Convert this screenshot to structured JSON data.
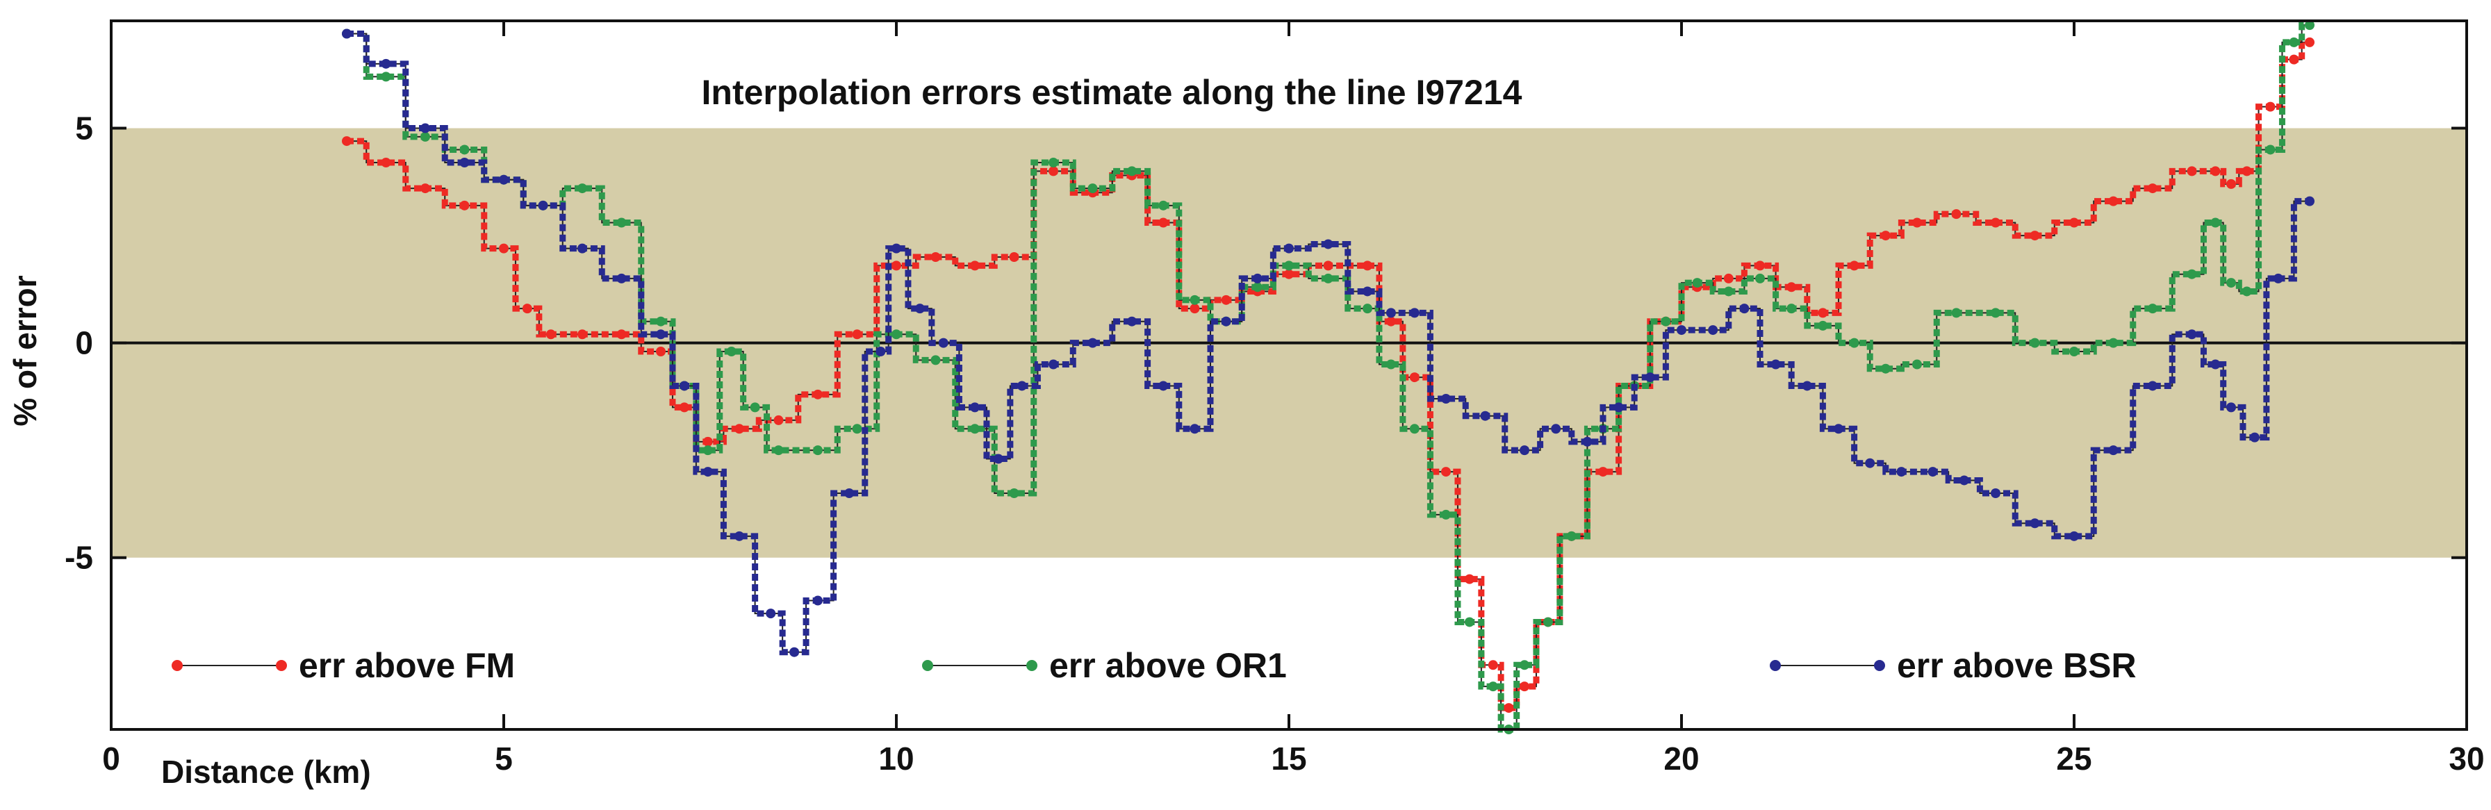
{
  "chart_data": {
    "type": "line",
    "title": "Interpolation errors estimate along the line I97214",
    "xlabel": "Distance (km)",
    "ylabel": "% of error",
    "xlim": [
      0,
      30
    ],
    "ylim": [
      -9,
      7.5
    ],
    "x_ticks": [
      0,
      5,
      10,
      15,
      20,
      25,
      30
    ],
    "y_ticks": [
      -5,
      0,
      5
    ],
    "tolerance_band": {
      "from": -5,
      "to": 5,
      "color": "#d5cda8"
    },
    "zero_line": true,
    "legend_position": "bottom",
    "series": [
      {
        "name": "err above FM",
        "color": "#ee2a24",
        "x": [
          3.0,
          3.5,
          4.0,
          4.5,
          5.0,
          5.3,
          5.6,
          6.0,
          6.5,
          7.0,
          7.3,
          7.6,
          8.0,
          8.5,
          9.0,
          9.5,
          10.0,
          10.5,
          11.0,
          11.5,
          12.0,
          12.5,
          13.0,
          13.4,
          13.8,
          14.2,
          14.6,
          15.0,
          15.5,
          16.0,
          16.3,
          16.6,
          17.0,
          17.3,
          17.6,
          17.8,
          18.0,
          18.3,
          18.6,
          19.0,
          19.4,
          19.8,
          20.2,
          20.6,
          21.0,
          21.4,
          21.8,
          22.2,
          22.6,
          23.0,
          23.5,
          24.0,
          24.5,
          25.0,
          25.5,
          26.0,
          26.5,
          26.8,
          27.0,
          27.2,
          27.5,
          27.8,
          28.0
        ],
        "y": [
          4.7,
          4.2,
          3.6,
          3.2,
          2.2,
          0.8,
          0.2,
          0.2,
          0.2,
          -0.2,
          -1.5,
          -2.3,
          -2.0,
          -1.8,
          -1.2,
          0.2,
          1.8,
          2.0,
          1.8,
          2.0,
          4.0,
          3.5,
          3.9,
          2.8,
          0.8,
          1.0,
          1.2,
          1.6,
          1.8,
          1.8,
          0.5,
          -0.8,
          -3.0,
          -5.5,
          -7.5,
          -8.5,
          -8.0,
          -6.5,
          -4.5,
          -3.0,
          -1.0,
          0.5,
          1.3,
          1.5,
          1.8,
          1.3,
          0.7,
          1.8,
          2.5,
          2.8,
          3.0,
          2.8,
          2.5,
          2.8,
          3.3,
          3.6,
          4.0,
          4.0,
          3.7,
          4.0,
          5.5,
          6.6,
          7.0
        ]
      },
      {
        "name": "err above OR1",
        "color": "#2e9a4c",
        "x": [
          3.0,
          3.5,
          4.0,
          4.5,
          5.0,
          5.5,
          6.0,
          6.5,
          7.0,
          7.3,
          7.6,
          7.9,
          8.2,
          8.5,
          9.0,
          9.5,
          10.0,
          10.5,
          11.0,
          11.5,
          12.0,
          12.5,
          13.0,
          13.4,
          13.8,
          14.2,
          14.6,
          15.0,
          15.5,
          16.0,
          16.3,
          16.6,
          17.0,
          17.3,
          17.6,
          17.8,
          18.0,
          18.3,
          18.6,
          19.0,
          19.4,
          19.8,
          20.2,
          20.6,
          21.0,
          21.4,
          21.8,
          22.2,
          22.6,
          23.0,
          23.5,
          24.0,
          24.5,
          25.0,
          25.5,
          26.0,
          26.5,
          26.8,
          27.0,
          27.2,
          27.5,
          27.8,
          28.0
        ],
        "y": [
          7.2,
          6.2,
          4.8,
          4.5,
          3.8,
          3.2,
          3.6,
          2.8,
          0.5,
          -1.0,
          -2.5,
          -0.2,
          -1.5,
          -2.5,
          -2.5,
          -2.0,
          0.2,
          -0.4,
          -2.0,
          -3.5,
          4.2,
          3.6,
          4.0,
          3.2,
          1.0,
          0.5,
          1.3,
          1.8,
          1.5,
          0.8,
          -0.5,
          -2.0,
          -4.0,
          -6.5,
          -8.0,
          -9.0,
          -7.5,
          -6.5,
          -4.5,
          -2.0,
          -1.0,
          0.5,
          1.4,
          1.2,
          1.5,
          0.8,
          0.4,
          0.0,
          -0.6,
          -0.5,
          0.7,
          0.7,
          0.0,
          -0.2,
          0.0,
          0.8,
          1.6,
          2.8,
          1.4,
          1.2,
          4.5,
          7.0,
          7.4
        ]
      },
      {
        "name": "err above BSR",
        "color": "#272a90",
        "x": [
          3.0,
          3.5,
          4.0,
          4.5,
          5.0,
          5.5,
          6.0,
          6.5,
          7.0,
          7.3,
          7.6,
          8.0,
          8.4,
          8.7,
          9.0,
          9.4,
          9.8,
          10.0,
          10.3,
          10.6,
          11.0,
          11.3,
          11.6,
          12.0,
          12.5,
          13.0,
          13.4,
          13.8,
          14.2,
          14.6,
          15.0,
          15.5,
          16.0,
          16.3,
          16.6,
          17.0,
          17.5,
          18.0,
          18.4,
          18.8,
          19.2,
          19.6,
          20.0,
          20.4,
          20.8,
          21.2,
          21.6,
          22.0,
          22.4,
          22.8,
          23.2,
          23.6,
          24.0,
          24.5,
          25.0,
          25.5,
          26.0,
          26.5,
          26.8,
          27.0,
          27.3,
          27.6,
          28.0
        ],
        "y": [
          7.2,
          6.5,
          5.0,
          4.2,
          3.8,
          3.2,
          2.2,
          1.5,
          0.2,
          -1.0,
          -3.0,
          -4.5,
          -6.3,
          -7.2,
          -6.0,
          -3.5,
          -0.2,
          2.2,
          0.8,
          0.0,
          -1.5,
          -2.7,
          -1.0,
          -0.5,
          0.0,
          0.5,
          -1.0,
          -2.0,
          0.5,
          1.5,
          2.2,
          2.3,
          1.2,
          0.7,
          0.7,
          -1.3,
          -1.7,
          -2.5,
          -2.0,
          -2.3,
          -1.5,
          -0.8,
          0.3,
          0.3,
          0.8,
          -0.5,
          -1.0,
          -2.0,
          -2.8,
          -3.0,
          -3.0,
          -3.2,
          -3.5,
          -4.2,
          -4.5,
          -2.5,
          -1.0,
          0.2,
          -0.5,
          -1.5,
          -2.2,
          1.5,
          3.3
        ]
      }
    ]
  }
}
